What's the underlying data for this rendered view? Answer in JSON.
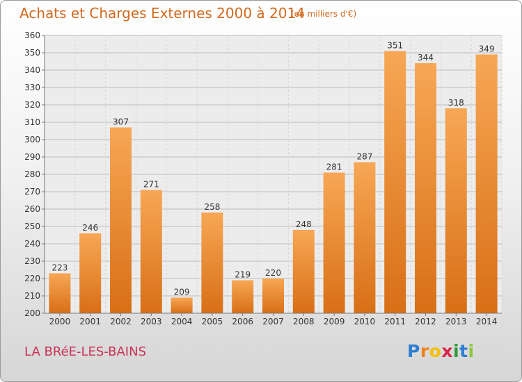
{
  "header": {
    "title": "Achats et Charges Externes 2000 à 2014",
    "subtitle": "(en milliers d'€)"
  },
  "footer": {
    "commune": "LA BRéE-LES-BAINS",
    "logo_letters": [
      "P",
      "r",
      "o",
      "x",
      "i",
      "t",
      "i"
    ],
    "logo_colors": [
      "#2e7fd2",
      "#f07f1a",
      "#f2c200",
      "#d8264a",
      "#2e9a3a",
      "#2e7fd2",
      "#8dc63f"
    ]
  },
  "chart_data": {
    "type": "bar",
    "title": "Achats et Charges Externes 2000 à 2014",
    "subtitle": "(en milliers d'€)",
    "categories": [
      "2000",
      "2001",
      "2002",
      "2003",
      "2004",
      "2005",
      "2006",
      "2007",
      "2008",
      "2009",
      "2010",
      "2011",
      "2012",
      "2013",
      "2014"
    ],
    "values": [
      223,
      246,
      307,
      271,
      209,
      258,
      219,
      220,
      248,
      281,
      287,
      351,
      344,
      318,
      349
    ],
    "ylim": [
      200,
      360
    ],
    "yticks": [
      200,
      210,
      220,
      230,
      240,
      250,
      260,
      270,
      280,
      290,
      300,
      310,
      320,
      330,
      340,
      350,
      360
    ],
    "grid": true,
    "bar_color": "#e8822a"
  }
}
